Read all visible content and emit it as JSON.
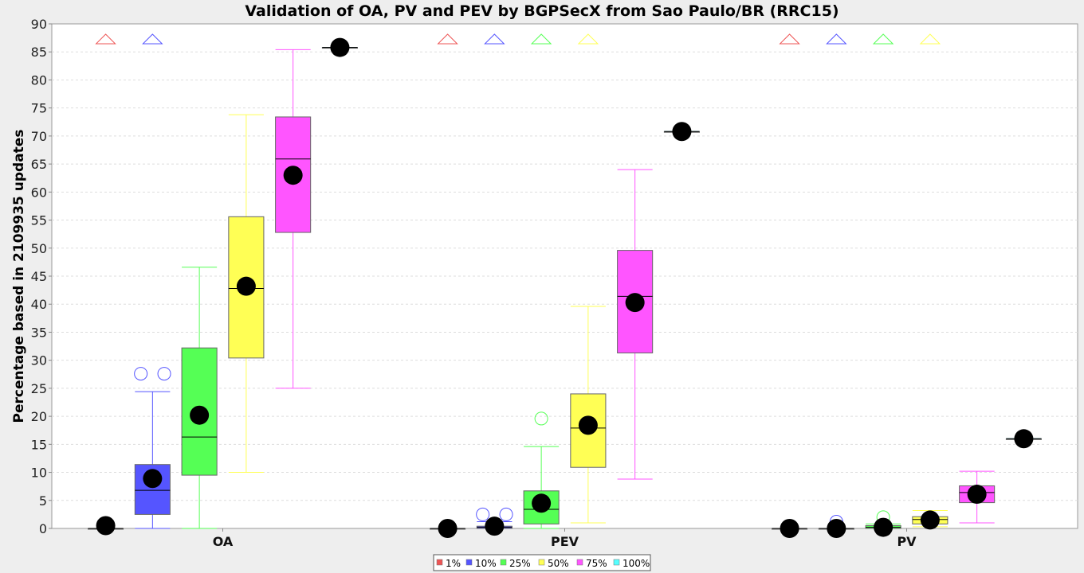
{
  "chart_data": {
    "type": "box",
    "title": "Validation of OA, PV and PEV by BGPSecX from Sao Paulo/BR (RRC15)",
    "xlabel": "",
    "ylabel": "Percentage based in 2109935 updates",
    "ylim": [
      0,
      90
    ],
    "y_ticks": [
      0,
      5,
      10,
      15,
      20,
      25,
      30,
      35,
      40,
      45,
      50,
      55,
      60,
      65,
      70,
      75,
      80,
      85,
      90
    ],
    "grid": true,
    "legend_position": "bottom-center",
    "categories": [
      "OA",
      "PEV",
      "PV"
    ],
    "series": [
      {
        "name": "1%",
        "color": "#ee5555",
        "boxes": [
          {
            "min": 0,
            "q1": 0,
            "median": 0,
            "q3": 0,
            "max": 0,
            "mean": 0.5,
            "outliers": [],
            "far_outlier": true
          },
          {
            "min": 0,
            "q1": 0,
            "median": 0,
            "q3": 0,
            "max": 0,
            "mean": 0,
            "outliers": [],
            "far_outlier": true
          },
          {
            "min": 0,
            "q1": 0,
            "median": 0,
            "q3": 0,
            "max": 0,
            "mean": 0,
            "outliers": [],
            "far_outlier": true
          }
        ]
      },
      {
        "name": "10%",
        "color": "#5555ff",
        "boxes": [
          {
            "min": 0,
            "q1": 2.5,
            "median": 6.8,
            "q3": 11.4,
            "max": 24.4,
            "mean": 8.9,
            "outliers": [
              27.6,
              27.6
            ],
            "far_outlier": true
          },
          {
            "min": 0,
            "q1": 0,
            "median": 0.2,
            "q3": 0.4,
            "max": 1.2,
            "mean": 0.4,
            "outliers": [
              2.5,
              2.5
            ],
            "far_outlier": true
          },
          {
            "min": 0,
            "q1": 0,
            "median": 0,
            "q3": 0,
            "max": 0,
            "mean": 0,
            "outliers": [
              1.2
            ],
            "far_outlier": true
          }
        ]
      },
      {
        "name": "25%",
        "color": "#55ff55",
        "boxes": [
          {
            "min": 0,
            "q1": 9.5,
            "median": 16.3,
            "q3": 32.2,
            "max": 46.6,
            "mean": 20.2,
            "outliers": [],
            "far_outlier": false
          },
          {
            "min": 0,
            "q1": 0.8,
            "median": 3.4,
            "q3": 6.7,
            "max": 14.6,
            "mean": 4.5,
            "outliers": [
              19.6
            ],
            "far_outlier": true
          },
          {
            "min": 0,
            "q1": 0,
            "median": 0.2,
            "q3": 0.5,
            "max": 0.8,
            "mean": 0.2,
            "outliers": [
              2.0
            ],
            "far_outlier": true
          }
        ]
      },
      {
        "name": "50%",
        "color": "#ffff55",
        "boxes": [
          {
            "min": 10.0,
            "q1": 30.4,
            "median": 42.8,
            "q3": 55.6,
            "max": 73.8,
            "mean": 43.2,
            "outliers": [],
            "far_outlier": false
          },
          {
            "min": 1.0,
            "q1": 10.9,
            "median": 17.9,
            "q3": 24.0,
            "max": 39.6,
            "mean": 18.4,
            "outliers": [],
            "far_outlier": true
          },
          {
            "min": 0.3,
            "q1": 0.8,
            "median": 1.6,
            "q3": 2.1,
            "max": 3.2,
            "mean": 1.5,
            "outliers": [],
            "far_outlier": true
          }
        ]
      },
      {
        "name": "75%",
        "color": "#ff55ff",
        "boxes": [
          {
            "min": 25.0,
            "q1": 52.8,
            "median": 65.9,
            "q3": 73.4,
            "max": 85.4,
            "mean": 63.0,
            "outliers": [],
            "far_outlier": false
          },
          {
            "min": 8.8,
            "q1": 31.3,
            "median": 41.4,
            "q3": 49.6,
            "max": 64.0,
            "mean": 40.3,
            "outliers": [],
            "far_outlier": false
          },
          {
            "min": 1.0,
            "q1": 4.6,
            "median": 6.4,
            "q3": 7.6,
            "max": 10.2,
            "mean": 6.1,
            "outliers": [],
            "far_outlier": false
          }
        ]
      },
      {
        "name": "100%",
        "color": "#55ffff",
        "boxes": [
          {
            "min": 85.8,
            "q1": 85.8,
            "median": 85.8,
            "q3": 85.8,
            "max": 85.8,
            "mean": 85.8,
            "outliers": [],
            "far_outlier": false
          },
          {
            "min": 70.8,
            "q1": 70.8,
            "median": 70.8,
            "q3": 70.8,
            "max": 70.8,
            "mean": 70.8,
            "outliers": [],
            "far_outlier": false
          },
          {
            "min": 16.0,
            "q1": 16.0,
            "median": 16.0,
            "q3": 16.0,
            "max": 16.0,
            "mean": 16.0,
            "outliers": [],
            "far_outlier": false
          }
        ]
      }
    ]
  }
}
